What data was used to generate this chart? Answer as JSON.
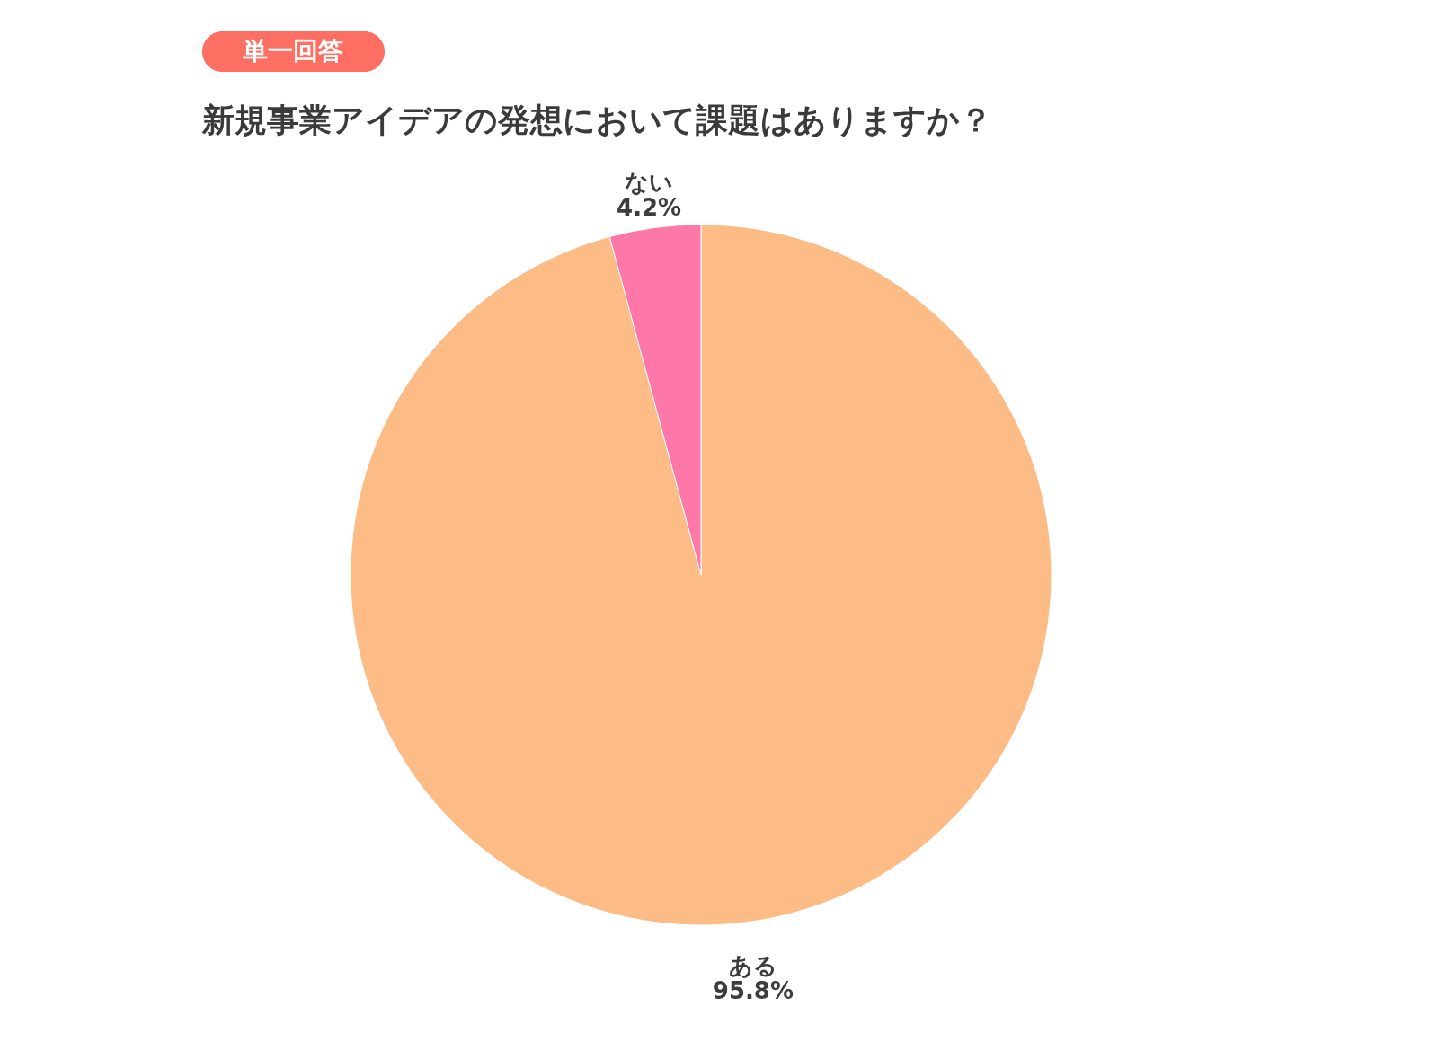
{
  "chart_data": {
    "type": "pie",
    "title": "新規事業アイデアの発想において課題はありますか？",
    "annotations": [
      "単一回答"
    ],
    "categories": [
      "ある",
      "ない"
    ],
    "values": [
      95.8,
      4.2
    ],
    "value_labels": [
      "95.8%",
      "4.2%"
    ],
    "colors": [
      "#fdbb85",
      "#fd78a8"
    ]
  }
}
